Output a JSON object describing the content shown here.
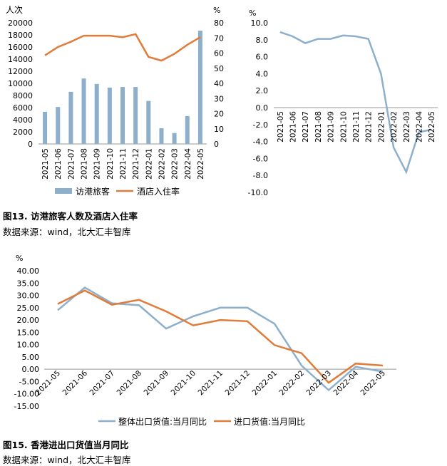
{
  "figures": [
    {
      "caption": "图13.  访港旅客人数及酒店入住率",
      "source": "数据来源：wind，北大汇丰智库"
    },
    {
      "caption": "图15.  香港进出口货值当月同比",
      "source": "数据来源：wind，北大汇丰智库"
    }
  ],
  "chart_data": [
    {
      "type": "bar",
      "categories": [
        "2021-05",
        "2021-06",
        "2021-07",
        "2021-08",
        "2021-09",
        "2021-10",
        "2021-11",
        "2021-12",
        "2022-01",
        "2022-02",
        "2022-03",
        "2022-04",
        "2022-05"
      ],
      "left_axis_label": "人次",
      "right_axis_label": "%",
      "ylim": [
        0,
        20000
      ],
      "y2lim": [
        0,
        80
      ],
      "left_ticks": [
        "0",
        "2000",
        "4000",
        "6000",
        "8000",
        "10000",
        "12000",
        "14000",
        "16000",
        "18000",
        "20000"
      ],
      "right_ticks": [
        "0",
        "10",
        "20",
        "30",
        "40",
        "50",
        "60",
        "70",
        "80"
      ],
      "series": [
        {
          "name": "访港旅客",
          "type": "bar",
          "axis": "left",
          "color": "#8EAFCB",
          "values": [
            5300,
            6100,
            8600,
            10800,
            9900,
            9300,
            9400,
            9400,
            7100,
            2600,
            1800,
            4600,
            18700
          ]
        },
        {
          "name": "酒店入住率",
          "type": "line",
          "axis": "right",
          "color": "#E07B39",
          "values": [
            58.5,
            64,
            67.5,
            71.5,
            71.5,
            71.5,
            70.5,
            72.5,
            57.5,
            55,
            59.5,
            65.5,
            70.5
          ]
        }
      ],
      "legend": "bottom"
    },
    {
      "type": "line",
      "categories": [
        "2021-05",
        "2021-06",
        "2021-07",
        "2021-08",
        "2021-09",
        "2021-10",
        "2021-11",
        "2021-12",
        "2022-01",
        "2022-02",
        "2022-03",
        "2022-04",
        "2022-05"
      ],
      "ylabel": "%",
      "ylim": [
        -10,
        10
      ],
      "ticks": [
        "10.0",
        "8.0",
        "6.0",
        "4.0",
        "2.0",
        "0.0",
        "-2.0",
        "-4.0",
        "-6.0",
        "-8.0",
        "-10.0"
      ],
      "series": [
        {
          "color": "#8EAFCB",
          "values": [
            8.9,
            8.4,
            7.6,
            8.1,
            8.1,
            8.5,
            8.4,
            8.1,
            4.0,
            -4.7,
            -7.6,
            -2.9,
            -2.6
          ]
        }
      ]
    },
    {
      "type": "line",
      "categories": [
        "2021-05",
        "2021-06",
        "2021-07",
        "2021-08",
        "2021-09",
        "2021-10",
        "2021-11",
        "2021-12",
        "2022-01",
        "2022-02",
        "2022-03",
        "2022-04",
        "2022-05"
      ],
      "ylabel": "%",
      "ylim": [
        -15,
        40
      ],
      "ticks": [
        "40.00",
        "35.00",
        "30.00",
        "25.00",
        "20.00",
        "15.00",
        "10.00",
        "5.00",
        "0.00",
        "-5.00",
        "-10.00",
        "-15.00"
      ],
      "series": [
        {
          "name": "整体出口货值:当月同比",
          "color": "#8EAFCB",
          "values": [
            24,
            33.2,
            26.8,
            26,
            16.5,
            21.5,
            25,
            25,
            18.5,
            1.5,
            -8.5,
            1.0,
            -1.0
          ]
        },
        {
          "name": "进口货值:当月同比",
          "color": "#E07B39",
          "values": [
            26.5,
            32,
            26.2,
            28.2,
            23.5,
            17.8,
            20,
            19.5,
            9.8,
            6.5,
            -5.5,
            2.3,
            1.5
          ]
        }
      ],
      "legend": "bottom"
    }
  ]
}
